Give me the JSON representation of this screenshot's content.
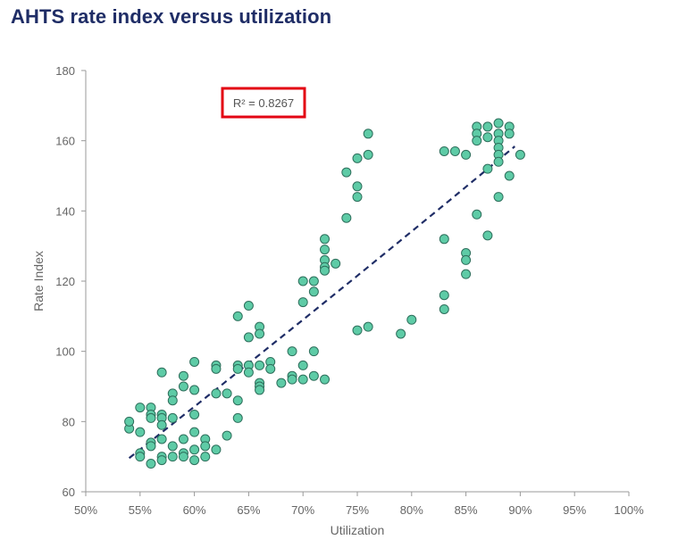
{
  "chart_data": {
    "type": "scatter",
    "title": "AHTS rate index versus utilization",
    "xlabel": "Utilization",
    "ylabel": "Rate Index",
    "xlim": [
      50,
      100
    ],
    "ylim": [
      60,
      180
    ],
    "x_ticks": [
      50,
      55,
      60,
      65,
      70,
      75,
      80,
      85,
      90,
      95,
      100
    ],
    "x_tick_labels": [
      "50%",
      "55%",
      "60%",
      "65%",
      "70%",
      "75%",
      "80%",
      "85%",
      "90%",
      "95%",
      "100%"
    ],
    "y_ticks": [
      60,
      80,
      100,
      120,
      140,
      160,
      180
    ],
    "y_tick_labels": [
      "60",
      "80",
      "100",
      "120",
      "140",
      "160",
      "180"
    ],
    "grid": false,
    "annotation": "R² = 0.8267",
    "trendline": {
      "style": "dashed",
      "type": "polynomial",
      "x_range": [
        54,
        89.5
      ]
    },
    "colors": {
      "marker_fill": "#5ecba6",
      "marker_stroke": "#2e6f5c",
      "trendline": "#1f2d66",
      "annotation_border": "#e30613",
      "axis": "#999999"
    },
    "points": [
      [
        54,
        78
      ],
      [
        54,
        80
      ],
      [
        55,
        71
      ],
      [
        55,
        70
      ],
      [
        55,
        77
      ],
      [
        55,
        84
      ],
      [
        56,
        84
      ],
      [
        56,
        82
      ],
      [
        56,
        81
      ],
      [
        56,
        74
      ],
      [
        56,
        73
      ],
      [
        56,
        68
      ],
      [
        57,
        94
      ],
      [
        57,
        82
      ],
      [
        57,
        81
      ],
      [
        57,
        79
      ],
      [
        57,
        75
      ],
      [
        57,
        70
      ],
      [
        57,
        69
      ],
      [
        58,
        88
      ],
      [
        58,
        86
      ],
      [
        58,
        81
      ],
      [
        58,
        73
      ],
      [
        58,
        70
      ],
      [
        59,
        93
      ],
      [
        59,
        90
      ],
      [
        59,
        75
      ],
      [
        59,
        71
      ],
      [
        59,
        70
      ],
      [
        60,
        97
      ],
      [
        60,
        89
      ],
      [
        60,
        82
      ],
      [
        60,
        77
      ],
      [
        60,
        72
      ],
      [
        60,
        69
      ],
      [
        61,
        75
      ],
      [
        61,
        73
      ],
      [
        61,
        70
      ],
      [
        62,
        96
      ],
      [
        62,
        95
      ],
      [
        62,
        88
      ],
      [
        62,
        72
      ],
      [
        63,
        88
      ],
      [
        63,
        76
      ],
      [
        64,
        110
      ],
      [
        64,
        96
      ],
      [
        64,
        95
      ],
      [
        64,
        86
      ],
      [
        64,
        81
      ],
      [
        65,
        113
      ],
      [
        65,
        104
      ],
      [
        65,
        96
      ],
      [
        65,
        94
      ],
      [
        66,
        107
      ],
      [
        66,
        105
      ],
      [
        66,
        96
      ],
      [
        66,
        91
      ],
      [
        66,
        90
      ],
      [
        66,
        89
      ],
      [
        67,
        97
      ],
      [
        67,
        95
      ],
      [
        68,
        91
      ],
      [
        69,
        100
      ],
      [
        69,
        93
      ],
      [
        69,
        92
      ],
      [
        70,
        120
      ],
      [
        70,
        114
      ],
      [
        70,
        96
      ],
      [
        70,
        92
      ],
      [
        71,
        120
      ],
      [
        71,
        117
      ],
      [
        71,
        100
      ],
      [
        71,
        93
      ],
      [
        72,
        132
      ],
      [
        72,
        129
      ],
      [
        72,
        126
      ],
      [
        72,
        124
      ],
      [
        72,
        123
      ],
      [
        72,
        92
      ],
      [
        73,
        125
      ],
      [
        74,
        151
      ],
      [
        74,
        138
      ],
      [
        75,
        155
      ],
      [
        75,
        147
      ],
      [
        75,
        144
      ],
      [
        75,
        106
      ],
      [
        76,
        162
      ],
      [
        76,
        156
      ],
      [
        76,
        107
      ],
      [
        79,
        105
      ],
      [
        80,
        109
      ],
      [
        83,
        157
      ],
      [
        83,
        132
      ],
      [
        83,
        116
      ],
      [
        83,
        112
      ],
      [
        84,
        157
      ],
      [
        85,
        156
      ],
      [
        85,
        128
      ],
      [
        85,
        126
      ],
      [
        85,
        122
      ],
      [
        86,
        164
      ],
      [
        86,
        162
      ],
      [
        86,
        160
      ],
      [
        86,
        139
      ],
      [
        87,
        164
      ],
      [
        87,
        161
      ],
      [
        87,
        152
      ],
      [
        87,
        133
      ],
      [
        88,
        165
      ],
      [
        88,
        162
      ],
      [
        88,
        160
      ],
      [
        88,
        158
      ],
      [
        88,
        156
      ],
      [
        88,
        154
      ],
      [
        88,
        144
      ],
      [
        89,
        164
      ],
      [
        89,
        162
      ],
      [
        89,
        150
      ],
      [
        90,
        156
      ]
    ]
  }
}
